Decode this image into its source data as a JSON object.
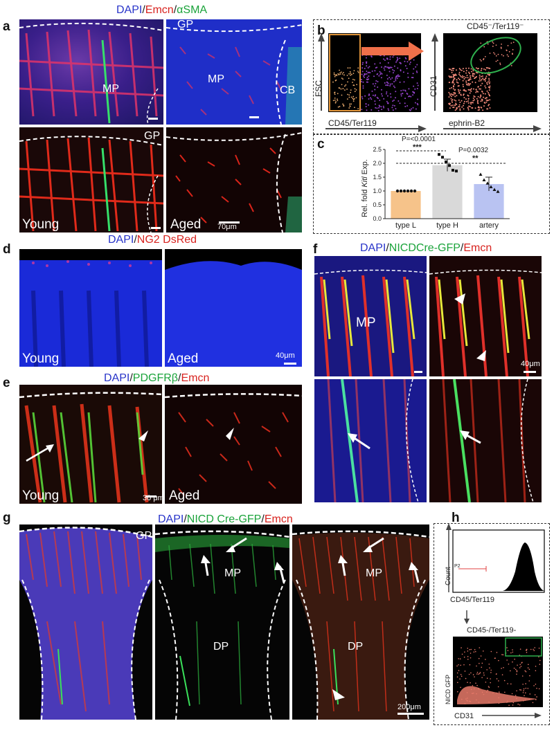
{
  "panel_letters": {
    "a": "a",
    "b": "b",
    "c": "c",
    "d": "d",
    "e": "e",
    "f": "f",
    "g": "g",
    "h": "h"
  },
  "titles": {
    "a": {
      "dapi": "DAPI",
      "sep1": "/",
      "emcn": "Emcn",
      "sep2": "/",
      "asma": "αSMA"
    },
    "d": {
      "dapi": "DAPI",
      "sep1": "/",
      "ng2": "NG2 DsRed"
    },
    "e": {
      "dapi": "DAPI",
      "sep1": "/",
      "pdgfrb": "PDGFRβ",
      "sep2": "/",
      "emcn": "Emcn"
    },
    "f": {
      "dapi": "DAPI",
      "sep1": "/",
      "nicd": "NICDCre-GFP",
      "sep2": "/",
      "emcn": "Emcn"
    },
    "g": {
      "dapi": "DAPI",
      "sep1": "/",
      "nicd": "NICD Cre-GFP",
      "sep2": "/",
      "emcn": "Emcn"
    }
  },
  "panel_a": {
    "mp1": "MP",
    "mp2": "MP",
    "gp1": "GP",
    "gp2": "GP",
    "cb": "CB",
    "young": "Young",
    "aged": "Aged",
    "scale": "70μm"
  },
  "panel_b": {
    "fsc": "FSC",
    "cd45ter": "CD45/Ter119",
    "cd31": "CD31",
    "ephrin": "ephrin-B2",
    "gate": "CD45⁻/Ter119⁻"
  },
  "panel_d": {
    "young": "Young",
    "aged": "Aged",
    "scale": "40μm"
  },
  "panel_e": {
    "young": "Young",
    "aged": "Aged",
    "scale": "30 μm"
  },
  "panel_f": {
    "mp": "MP",
    "scale": "40μm"
  },
  "panel_g": {
    "gp": "GP",
    "mp1": "MP",
    "mp2": "MP",
    "dp1": "DP",
    "dp2": "DP",
    "scale": "200μm"
  },
  "panel_h": {
    "count": "Count",
    "cd45ter": "CD45/Ter119",
    "p2": "P2",
    "gate": "CD45-/Ter119-",
    "nicd": "NICD GFP",
    "cd31": "CD31"
  },
  "chart_data": {
    "type": "bar",
    "categories": [
      "type L",
      "type H",
      "artery"
    ],
    "values": [
      1.0,
      1.93,
      1.25
    ],
    "errors": [
      0.0,
      0.22,
      0.25
    ],
    "colors": [
      "#f6c38a",
      "#d9d9d9",
      "#b9c3f2"
    ],
    "points": [
      [
        1.0,
        1.0,
        1.0,
        1.0,
        1.0,
        1.0
      ],
      [
        2.32,
        2.22,
        2.05,
        1.92,
        1.75,
        1.72
      ],
      [
        1.6,
        1.4,
        1.28,
        1.15,
        1.05,
        0.98
      ]
    ],
    "ylabel_pre": "Rel. fold ",
    "ylabel_gene": "Kitl",
    "ylabel_post": " Exp.",
    "ylim": [
      0,
      2.5
    ],
    "yticks": [
      "0.0",
      "0.5",
      "1.0",
      "1.5",
      "2.0",
      "2.5"
    ],
    "annotations": {
      "p1": "P=<0.0001",
      "s1": "***",
      "p2": "P=0.0032",
      "s2": "**"
    }
  }
}
